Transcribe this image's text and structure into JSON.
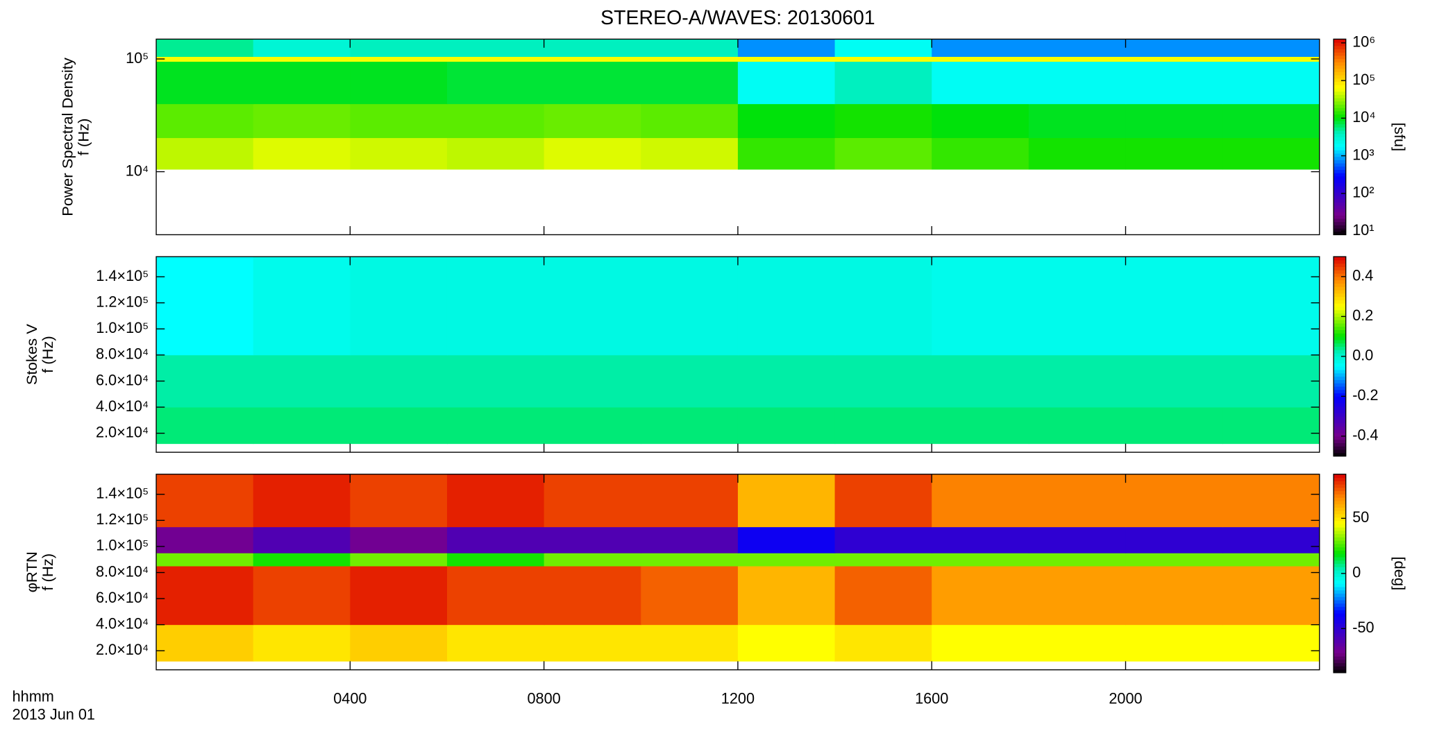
{
  "chart_data": [
    {
      "type": "heatmap",
      "title": "STEREO-A/WAVES: 20130601",
      "ylabel": "Power Spectral Density",
      "ylabel2": "f (Hz)",
      "ylog": true,
      "ylim": [
        2760,
        150000
      ],
      "yticks": [
        {
          "value": 10000,
          "label": "10⁴"
        },
        {
          "value": 100000,
          "label": "10⁵"
        }
      ],
      "x_edges": [
        0,
        2,
        4,
        6,
        8,
        10,
        12,
        14,
        16,
        18,
        20,
        22,
        24
      ],
      "y_edges": [
        10500,
        20000,
        40000,
        95000,
        105000,
        150000
      ],
      "z": [
        [
          40000,
          50000,
          45000,
          40000,
          50000,
          45000,
          15000,
          20000,
          15000,
          12000,
          12000,
          12000
        ],
        [
          20000,
          22000,
          20000,
          20000,
          22000,
          20000,
          10000,
          12000,
          10000,
          9000,
          9000,
          9000
        ],
        [
          9000,
          9000,
          9000,
          8000,
          8000,
          8000,
          2000,
          4000,
          2000,
          2000,
          2000,
          2000
        ],
        [
          60000,
          60000,
          60000,
          60000,
          60000,
          60000,
          60000,
          60000,
          60000,
          60000,
          60000,
          60000
        ],
        [
          5000,
          3000,
          4000,
          4000,
          4000,
          4000,
          800,
          2000,
          800,
          800,
          800,
          800
        ]
      ],
      "colormap": "rainbow",
      "clog": true,
      "clim": [
        8,
        1260000
      ],
      "cticks": [
        {
          "value": 10,
          "label": "10¹"
        },
        {
          "value": 100,
          "label": "10²"
        },
        {
          "value": 1000,
          "label": "10³"
        },
        {
          "value": 10000,
          "label": "10⁴"
        },
        {
          "value": 100000,
          "label": "10⁵"
        },
        {
          "value": 1000000,
          "label": "10⁶"
        }
      ],
      "clabel": "[sfu]"
    },
    {
      "type": "heatmap",
      "ylabel": "Stokes V",
      "ylabel2": "f (Hz)",
      "ylog": false,
      "ylim": [
        5400,
        155400
      ],
      "yticks": [
        {
          "value": 20000,
          "label": "2.0×10⁴"
        },
        {
          "value": 40000,
          "label": "4.0×10⁴"
        },
        {
          "value": 60000,
          "label": "6.0×10⁴"
        },
        {
          "value": 80000,
          "label": "8.0×10⁴"
        },
        {
          "value": 100000,
          "label": "1.0×10⁵"
        },
        {
          "value": 120000,
          "label": "1.2×10⁵"
        },
        {
          "value": 140000,
          "label": "1.4×10⁵"
        }
      ],
      "x_edges": [
        0,
        2,
        4,
        6,
        8,
        10,
        12,
        14,
        16,
        18,
        20,
        22,
        24
      ],
      "y_edges": [
        12000,
        40000,
        80000,
        155400
      ],
      "z": [
        [
          0.05,
          0.05,
          0.05,
          0.05,
          0.05,
          0.05,
          0.05,
          0.05,
          0.05,
          0.05,
          0.05,
          0.05
        ],
        [
          0.03,
          0.03,
          0.03,
          0.03,
          0.03,
          0.03,
          0.03,
          0.03,
          0.03,
          0.03,
          0.03,
          0.03
        ],
        [
          -0.05,
          -0.03,
          -0.02,
          -0.02,
          -0.02,
          -0.02,
          -0.02,
          -0.02,
          -0.03,
          -0.03,
          -0.03,
          -0.03
        ]
      ],
      "colormap": "rainbow",
      "clog": false,
      "clim": [
        -0.5,
        0.5
      ],
      "cticks": [
        -0.4,
        -0.2,
        {
          "value": 0,
          "label": "0.0"
        },
        0.2,
        0.4
      ]
    },
    {
      "type": "heatmap",
      "ylabel": "φRTN",
      "ylabel2": "f (Hz)",
      "ylog": false,
      "ylim": [
        5400,
        155400
      ],
      "yticks": [
        {
          "value": 20000,
          "label": "2.0×10⁴"
        },
        {
          "value": 40000,
          "label": "4.0×10⁴"
        },
        {
          "value": 60000,
          "label": "6.0×10⁴"
        },
        {
          "value": 80000,
          "label": "8.0×10⁴"
        },
        {
          "value": 100000,
          "label": "1.0×10⁵"
        },
        {
          "value": 120000,
          "label": "1.2×10⁵"
        },
        {
          "value": 140000,
          "label": "1.4×10⁵"
        }
      ],
      "x_edges": [
        0,
        2,
        4,
        6,
        8,
        10,
        12,
        14,
        16,
        18,
        20,
        22,
        24
      ],
      "y_edges": [
        12000,
        40000,
        85000,
        95000,
        115000,
        155400
      ],
      "z": [
        [
          55,
          50,
          55,
          50,
          50,
          50,
          45,
          50,
          45,
          45,
          45,
          45
        ],
        [
          85,
          80,
          85,
          80,
          80,
          75,
          60,
          75,
          65,
          65,
          65,
          65
        ],
        [
          30,
          20,
          30,
          20,
          30,
          30,
          30,
          30,
          30,
          30,
          30,
          30
        ],
        [
          -70,
          -60,
          -70,
          -60,
          -60,
          -60,
          -40,
          -50,
          -50,
          -50,
          -50,
          -50
        ],
        [
          80,
          85,
          80,
          85,
          80,
          80,
          60,
          80,
          70,
          70,
          70,
          70
        ]
      ],
      "colormap": "rainbow",
      "clog": false,
      "clim": [
        -90,
        90
      ],
      "cticks": [
        -50,
        0,
        50
      ],
      "clabel": "[deg]",
      "xlim": [
        0,
        24
      ],
      "xticks": [
        {
          "value": 4,
          "label": "0400"
        },
        {
          "value": 8,
          "label": "0800"
        },
        {
          "value": 12,
          "label": "1200"
        },
        {
          "value": 16,
          "label": "1600"
        },
        {
          "value": 20,
          "label": "2000"
        }
      ],
      "xlabel": "hhmm",
      "xlabel2": "2013 Jun 01"
    }
  ]
}
